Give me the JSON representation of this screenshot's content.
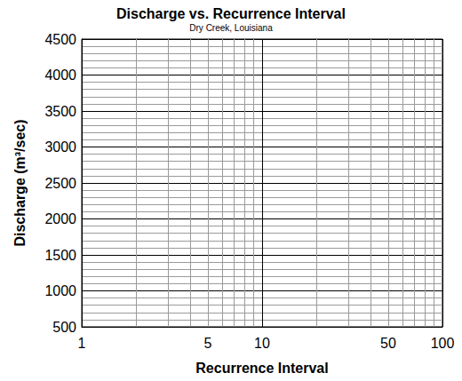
{
  "chart_data": {
    "type": "line",
    "title": "Discharge vs. Recurrence Interval",
    "subtitle": "Dry Creek, Louisiana",
    "x_label": "Recurrence Interval",
    "y_label": "Discharge (m³/sec)",
    "series": [],
    "xlim": [
      1,
      100
    ],
    "ylim": [
      500,
      4500
    ],
    "xticks": [
      1,
      5,
      10,
      50,
      100
    ],
    "yticks": [
      500,
      1000,
      1500,
      2000,
      2500,
      3000,
      3500,
      4000,
      4500
    ],
    "log": "x",
    "grid": true
  }
}
